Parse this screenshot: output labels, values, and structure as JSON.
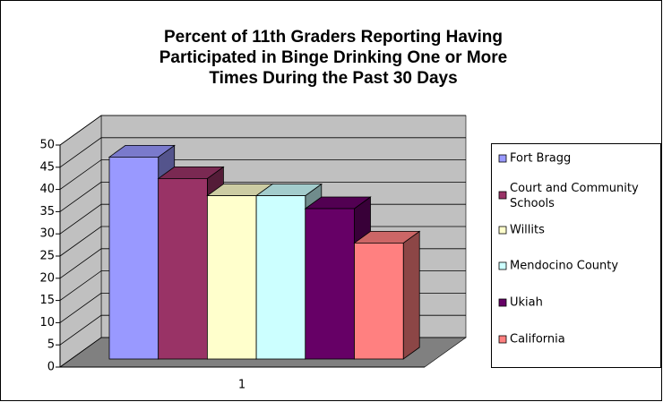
{
  "chart_data": {
    "type": "bar3d",
    "title": [
      "Percent of 11th Graders Reporting Having",
      "Participated in Binge Drinking One or More",
      "Times During the Past 30 Days"
    ],
    "categories": [
      "1"
    ],
    "series": [
      {
        "name": "Fort Bragg",
        "color": "#9999ff",
        "values": [
          47
        ]
      },
      {
        "name": "Court and Community Schools",
        "color": "#993366",
        "values": [
          42
        ]
      },
      {
        "name": "Willits",
        "color": "#ffffcc",
        "values": [
          38
        ]
      },
      {
        "name": "Mendocino County",
        "color": "#ccffff",
        "values": [
          38
        ]
      },
      {
        "name": "Ukiah",
        "color": "#660066",
        "values": [
          35
        ]
      },
      {
        "name": "California",
        "color": "#ff8080",
        "values": [
          27
        ]
      }
    ],
    "ylim": [
      0,
      50
    ],
    "yticks": [
      0,
      5,
      10,
      15,
      20,
      25,
      30,
      35,
      40,
      45,
      50
    ],
    "grid": true,
    "legend": "right"
  }
}
